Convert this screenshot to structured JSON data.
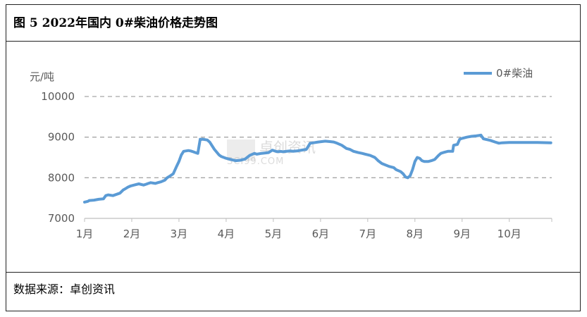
{
  "header": {
    "title": "图 5  2022年国内 0#柴油价格走势图"
  },
  "footer": {
    "source": "数据来源：卓创资讯"
  },
  "watermark": {
    "name": "卓创资讯",
    "url": "SCI99.COM"
  },
  "colors": {
    "series": "#5B9BD5",
    "grid": "#A6A6A6",
    "axis": "#BFBFBF"
  },
  "chart_data": {
    "type": "line",
    "title": "",
    "xlabel": "",
    "ylabel": "元/吨",
    "ylim": [
      7000,
      10000
    ],
    "yticks": [
      7000,
      8000,
      9000,
      10000
    ],
    "xlim": [
      1,
      10.9
    ],
    "xticks": [
      {
        "label": "1月",
        "value": 1
      },
      {
        "label": "2月",
        "value": 2
      },
      {
        "label": "3月",
        "value": 3
      },
      {
        "label": "4月",
        "value": 4
      },
      {
        "label": "5月",
        "value": 5
      },
      {
        "label": "6月",
        "value": 6
      },
      {
        "label": "7月",
        "value": 7
      },
      {
        "label": "8月",
        "value": 8
      },
      {
        "label": "9月",
        "value": 9
      },
      {
        "label": "10月",
        "value": 10
      }
    ],
    "grid": "horizontal dashed",
    "legend": "top-right",
    "series": [
      {
        "name": "0#柴油",
        "x": [
          1.0,
          1.07,
          1.1,
          1.2,
          1.25,
          1.3,
          1.4,
          1.45,
          1.5,
          1.55,
          1.6,
          1.75,
          1.82,
          1.88,
          1.92,
          1.98,
          2.05,
          2.15,
          2.25,
          2.3,
          2.35,
          2.4,
          2.5,
          2.55,
          2.62,
          2.7,
          2.75,
          2.82,
          2.88,
          2.95,
          3.0,
          3.05,
          3.1,
          3.2,
          3.25,
          3.3,
          3.35,
          3.4,
          3.45,
          3.47,
          3.5,
          3.6,
          3.65,
          3.75,
          3.85,
          3.9,
          4.0,
          4.1,
          4.2,
          4.3,
          4.4,
          4.5,
          4.6,
          4.65,
          4.75,
          4.9,
          4.98,
          5.05,
          5.1,
          5.15,
          5.2,
          5.35,
          5.42,
          5.5,
          5.6,
          5.7,
          5.78,
          5.85,
          5.95,
          6.1,
          6.2,
          6.28,
          6.35,
          6.45,
          6.55,
          6.62,
          6.7,
          6.8,
          6.88,
          6.95,
          7.05,
          7.15,
          7.22,
          7.3,
          7.45,
          7.55,
          7.6,
          7.7,
          7.75,
          7.8,
          7.85,
          7.9,
          7.95,
          8.0,
          8.05,
          8.1,
          8.15,
          8.2,
          8.28,
          8.35,
          8.42,
          8.5,
          8.55,
          8.6,
          8.7,
          8.8,
          8.82,
          8.9,
          8.95,
          9.0,
          9.1,
          9.2,
          9.3,
          9.35,
          9.4,
          9.45,
          9.6,
          9.7,
          9.78,
          9.85,
          10.0,
          10.2,
          10.4,
          10.6,
          10.88
        ],
        "values": [
          7400,
          7420,
          7440,
          7450,
          7460,
          7470,
          7480,
          7560,
          7580,
          7570,
          7560,
          7620,
          7700,
          7740,
          7770,
          7800,
          7820,
          7850,
          7820,
          7840,
          7860,
          7880,
          7860,
          7880,
          7900,
          7940,
          8000,
          8050,
          8100,
          8280,
          8400,
          8560,
          8650,
          8670,
          8660,
          8640,
          8620,
          8600,
          8950,
          8940,
          8950,
          8930,
          8880,
          8700,
          8560,
          8520,
          8480,
          8450,
          8420,
          8430,
          8460,
          8550,
          8600,
          8580,
          8600,
          8620,
          8680,
          8650,
          8640,
          8650,
          8640,
          8660,
          8650,
          8660,
          8680,
          8700,
          8850,
          8860,
          8880,
          8900,
          8890,
          8880,
          8850,
          8800,
          8720,
          8700,
          8650,
          8620,
          8600,
          8580,
          8550,
          8500,
          8420,
          8350,
          8280,
          8250,
          8200,
          8150,
          8100,
          8020,
          8000,
          8050,
          8200,
          8400,
          8500,
          8480,
          8420,
          8400,
          8400,
          8420,
          8450,
          8550,
          8600,
          8620,
          8650,
          8650,
          8800,
          8820,
          8950,
          8970,
          9000,
          9020,
          9030,
          9040,
          9050,
          8960,
          8920,
          8880,
          8850,
          8860,
          8870,
          8870,
          8870,
          8870,
          8860
        ]
      }
    ]
  }
}
